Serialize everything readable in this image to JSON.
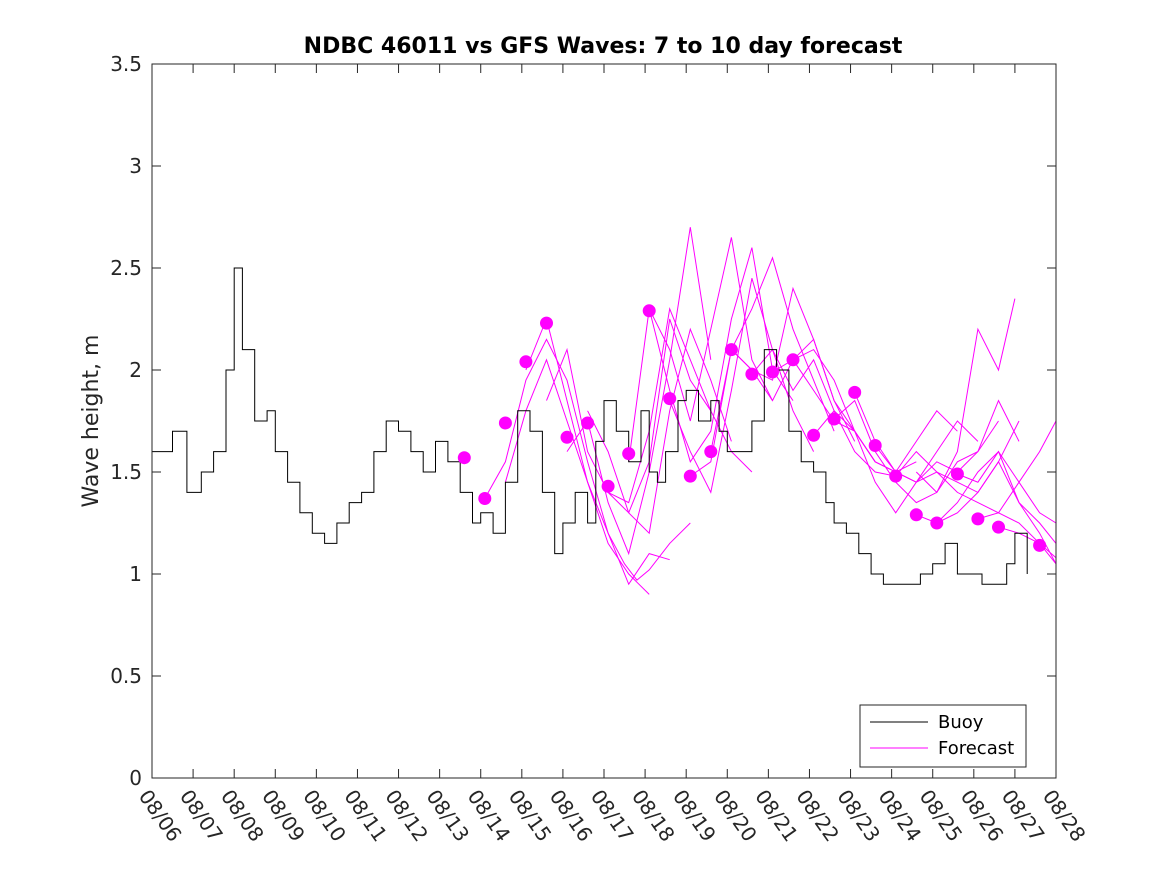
{
  "chart_data": {
    "type": "line",
    "title": "NDBC 46011 vs GFS Waves: 7 to 10 day forecast",
    "xlabel": "",
    "ylabel": "Wave height, m",
    "xlim": [
      0,
      22
    ],
    "ylim": [
      0,
      3.5
    ],
    "x_ticks": [
      "08/06",
      "08/07",
      "08/08",
      "08/09",
      "08/10",
      "08/11",
      "08/12",
      "08/13",
      "08/14",
      "08/15",
      "08/16",
      "08/17",
      "08/18",
      "08/19",
      "08/20",
      "08/21",
      "08/22",
      "08/23",
      "08/24",
      "08/25",
      "08/26",
      "08/27",
      "08/28"
    ],
    "y_ticks": [
      0,
      0.5,
      1,
      1.5,
      2,
      2.5,
      3,
      3.5
    ],
    "y_tick_labels": [
      "0",
      "0.5",
      "1",
      "1.5",
      "2",
      "2.5",
      "3",
      "3.5"
    ],
    "grid": false,
    "legend": {
      "position": "bottom-right",
      "entries": [
        "Buoy",
        "Forecast"
      ]
    },
    "colors": {
      "buoy": "#000000",
      "forecast": "#ff00ff"
    },
    "buoy": {
      "name": "Buoy",
      "x": [
        0,
        0.5,
        0.85,
        1.2,
        1.5,
        1.8,
        2.0,
        2.2,
        2.5,
        2.8,
        3.0,
        3.3,
        3.6,
        3.9,
        4.2,
        4.5,
        4.8,
        5.1,
        5.4,
        5.7,
        6.0,
        6.3,
        6.6,
        6.9,
        7.2,
        7.5,
        7.8,
        8.0,
        8.3,
        8.6,
        8.9,
        9.2,
        9.5,
        9.8,
        10.0,
        10.3,
        10.6,
        10.8,
        11.0,
        11.3,
        11.6,
        11.9,
        12.1,
        12.3,
        12.5,
        12.8,
        13.0,
        13.3,
        13.6,
        13.8,
        14.0,
        14.3,
        14.6,
        14.9,
        15.2,
        15.5,
        15.8,
        16.1,
        16.4,
        16.6,
        16.9,
        17.2,
        17.5,
        17.8,
        18.1,
        18.4,
        18.7,
        19.0,
        19.3,
        19.6,
        19.9,
        20.2,
        20.5,
        20.8,
        21.0,
        21.3
      ],
      "values": [
        1.6,
        1.7,
        1.4,
        1.5,
        1.6,
        2.0,
        2.5,
        2.1,
        1.75,
        1.8,
        1.6,
        1.45,
        1.3,
        1.2,
        1.15,
        1.25,
        1.35,
        1.4,
        1.6,
        1.75,
        1.7,
        1.6,
        1.5,
        1.65,
        1.55,
        1.4,
        1.25,
        1.3,
        1.2,
        1.45,
        1.8,
        1.7,
        1.4,
        1.1,
        1.25,
        1.4,
        1.25,
        1.65,
        1.85,
        1.7,
        1.55,
        1.8,
        1.5,
        1.45,
        1.6,
        1.85,
        1.9,
        1.75,
        1.85,
        1.7,
        1.6,
        1.6,
        1.75,
        2.1,
        2.0,
        1.7,
        1.55,
        1.5,
        1.35,
        1.25,
        1.2,
        1.1,
        1.0,
        0.95,
        0.95,
        0.95,
        1.0,
        1.05,
        1.15,
        1.0,
        1.0,
        0.95,
        0.95,
        1.05,
        1.2,
        1.0
      ]
    },
    "forecast_points": {
      "name": "Forecast",
      "x": [
        7.6,
        8.1,
        8.6,
        9.1,
        9.6,
        10.1,
        10.6,
        11.1,
        11.6,
        12.1,
        12.6,
        13.1,
        13.6,
        14.1,
        14.6,
        15.1,
        15.6,
        16.1,
        16.6,
        17.1,
        17.6,
        18.1,
        18.6,
        19.1,
        19.6,
        20.1,
        20.6,
        21.6
      ],
      "values": [
        1.57,
        1.37,
        1.74,
        2.04,
        2.23,
        1.67,
        1.74,
        1.43,
        1.59,
        2.29,
        1.86,
        1.48,
        1.6,
        2.1,
        1.98,
        1.99,
        2.05,
        1.68,
        1.76,
        1.89,
        1.63,
        1.48,
        1.29,
        1.25,
        1.49,
        1.27,
        1.23,
        1.14
      ]
    },
    "series": [
      {
        "name": "Forecast",
        "x": [
          8.1,
          8.6,
          9.1,
          9.6,
          10.1,
          10.6,
          11.1,
          11.5,
          11.8,
          12.1,
          12.6,
          13.1
        ],
        "values": [
          1.37,
          1.55,
          1.95,
          2.15,
          1.95,
          1.55,
          1.2,
          1.05,
          0.97,
          1.02,
          1.15,
          1.25
        ]
      },
      {
        "name": "Forecast",
        "x": [
          8.6,
          9.1,
          9.6,
          10.1,
          10.6,
          11.1,
          11.6,
          12.1,
          12.6
        ],
        "values": [
          1.45,
          1.8,
          2.05,
          1.75,
          1.45,
          1.2,
          0.95,
          1.1,
          1.07
        ]
      },
      {
        "name": "Forecast",
        "x": [
          9.1,
          9.6,
          10.1,
          10.6,
          11.1,
          11.6,
          12.1
        ],
        "values": [
          2.0,
          2.25,
          1.85,
          1.45,
          1.15,
          1.0,
          0.9
        ]
      },
      {
        "name": "Forecast",
        "x": [
          9.6,
          10.1,
          10.6,
          11.1,
          11.6,
          12.1,
          12.6,
          13.1,
          13.6
        ],
        "values": [
          1.85,
          2.1,
          1.6,
          1.4,
          1.3,
          1.55,
          2.25,
          1.95,
          1.8
        ]
      },
      {
        "name": "Forecast",
        "x": [
          10.1,
          10.6,
          11.1,
          11.6,
          12.1,
          12.6,
          13.1,
          13.6
        ],
        "values": [
          1.6,
          1.75,
          1.35,
          1.1,
          1.5,
          2.05,
          2.7,
          2.05
        ]
      },
      {
        "name": "Forecast",
        "x": [
          10.6,
          11.1,
          11.6,
          12.1,
          12.6,
          13.1,
          13.6,
          14.1
        ],
        "values": [
          1.8,
          1.6,
          1.3,
          1.2,
          1.8,
          2.2,
          1.95,
          1.65
        ]
      },
      {
        "name": "Forecast",
        "x": [
          11.1,
          11.6,
          12.1,
          12.6,
          13.1,
          13.6,
          14.1,
          14.6
        ],
        "values": [
          1.4,
          1.35,
          1.7,
          2.3,
          2.05,
          1.8,
          1.6,
          1.5
        ]
      },
      {
        "name": "Forecast",
        "x": [
          11.6,
          12.1,
          12.6,
          13.1,
          13.6,
          14.1,
          14.6,
          15.1
        ],
        "values": [
          1.55,
          2.3,
          2.1,
          1.75,
          2.2,
          2.65,
          2.05,
          1.85
        ]
      },
      {
        "name": "Forecast",
        "x": [
          12.1,
          12.6,
          13.1,
          13.6,
          14.1,
          14.6,
          15.1,
          15.6
        ],
        "values": [
          2.3,
          1.9,
          1.55,
          1.7,
          2.25,
          2.6,
          2.0,
          1.85
        ]
      },
      {
        "name": "Forecast",
        "x": [
          12.6,
          13.1,
          13.6,
          14.1,
          14.6,
          15.1,
          15.6,
          16.1
        ],
        "values": [
          1.85,
          1.6,
          1.4,
          1.9,
          2.45,
          2.1,
          1.8,
          1.6
        ]
      },
      {
        "name": "Forecast",
        "x": [
          13.1,
          13.6,
          14.1,
          14.6,
          15.1,
          15.6,
          16.1,
          16.6
        ],
        "values": [
          1.48,
          1.55,
          2.1,
          2.3,
          2.55,
          2.2,
          1.95,
          1.7
        ]
      },
      {
        "name": "Forecast",
        "x": [
          13.6,
          14.1,
          14.6,
          15.1,
          15.6,
          16.1,
          16.6,
          17.1
        ],
        "values": [
          1.6,
          2.1,
          2.0,
          1.95,
          2.4,
          2.15,
          1.85,
          1.65
        ]
      },
      {
        "name": "Forecast",
        "x": [
          14.1,
          14.6,
          15.1,
          15.6,
          16.1,
          16.6,
          17.1,
          17.6
        ],
        "values": [
          2.1,
          2.0,
          1.85,
          2.05,
          1.9,
          1.75,
          1.7,
          1.55
        ]
      },
      {
        "name": "Forecast",
        "x": [
          14.6,
          15.1,
          15.6,
          16.1,
          16.6,
          17.1,
          17.6,
          18.1
        ],
        "values": [
          1.98,
          2.1,
          1.9,
          2.05,
          1.8,
          1.6,
          1.5,
          1.48
        ]
      },
      {
        "name": "Forecast",
        "x": [
          15.1,
          15.6,
          16.1,
          16.6,
          17.1,
          17.6,
          18.1,
          18.6
        ],
        "values": [
          1.99,
          2.05,
          2.1,
          1.95,
          1.7,
          1.55,
          1.5,
          1.55
        ]
      },
      {
        "name": "Forecast",
        "x": [
          15.6,
          16.1,
          16.6,
          17.1,
          17.6,
          18.1,
          18.6,
          19.1,
          19.6
        ],
        "values": [
          2.05,
          2.15,
          1.85,
          1.7,
          1.55,
          1.5,
          1.65,
          1.8,
          1.7
        ]
      },
      {
        "name": "Forecast",
        "x": [
          16.1,
          16.6,
          17.1,
          17.6,
          18.1,
          18.6,
          19.1,
          19.6,
          20.1
        ],
        "values": [
          1.68,
          1.8,
          1.7,
          1.45,
          1.3,
          1.45,
          1.6,
          1.75,
          1.65
        ]
      },
      {
        "name": "Forecast",
        "x": [
          16.6,
          17.1,
          17.6,
          18.1,
          18.6,
          19.1,
          19.6,
          20.1,
          20.6
        ],
        "values": [
          1.76,
          1.85,
          1.6,
          1.45,
          1.35,
          1.4,
          1.55,
          1.6,
          1.75
        ]
      },
      {
        "name": "Forecast",
        "x": [
          17.1,
          17.6,
          18.1,
          18.6,
          19.1,
          19.6,
          20.1,
          20.6,
          21.1
        ],
        "values": [
          1.89,
          1.65,
          1.5,
          1.45,
          1.5,
          1.45,
          1.4,
          1.55,
          1.75
        ]
      },
      {
        "name": "Forecast",
        "x": [
          17.6,
          18.1,
          18.6,
          19.1,
          19.6,
          20.1,
          20.6,
          21.1
        ],
        "values": [
          1.63,
          1.5,
          1.45,
          1.55,
          1.5,
          1.6,
          1.85,
          1.65
        ]
      },
      {
        "name": "Forecast",
        "x": [
          18.1,
          18.6,
          19.1,
          19.6,
          20.1,
          20.6,
          21.1,
          21.6,
          22.0
        ],
        "values": [
          1.48,
          1.6,
          1.5,
          1.4,
          1.35,
          1.3,
          1.45,
          1.6,
          1.75
        ]
      },
      {
        "name": "Forecast",
        "x": [
          18.6,
          19.1,
          19.6,
          20.1,
          20.6,
          21.1,
          21.6,
          22.0
        ],
        "values": [
          1.29,
          1.25,
          1.35,
          1.5,
          1.6,
          1.45,
          1.3,
          1.25
        ]
      },
      {
        "name": "Forecast",
        "x": [
          19.1,
          19.6,
          20.1,
          20.6,
          21.1,
          21.6,
          22.0
        ],
        "values": [
          1.25,
          1.3,
          1.4,
          1.55,
          1.35,
          1.2,
          1.05
        ]
      },
      {
        "name": "Forecast",
        "x": [
          19.6,
          20.1,
          20.6,
          21.1,
          21.6,
          22.0
        ],
        "values": [
          1.49,
          1.45,
          1.6,
          1.35,
          1.25,
          1.15
        ]
      },
      {
        "name": "Forecast",
        "x": [
          20.1,
          20.6,
          21.1,
          21.6,
          22.0
        ],
        "values": [
          1.27,
          1.3,
          1.25,
          1.15,
          1.08
        ]
      },
      {
        "name": "Forecast",
        "x": [
          20.6,
          21.1,
          21.6,
          22.0
        ],
        "values": [
          1.23,
          1.2,
          1.15,
          1.05
        ]
      },
      {
        "name": "Forecast",
        "x": [
          18.6,
          19.1,
          19.6,
          20.1,
          20.6,
          21.0
        ],
        "values": [
          1.5,
          1.4,
          1.6,
          2.2,
          2.0,
          2.35
        ]
      }
    ]
  }
}
